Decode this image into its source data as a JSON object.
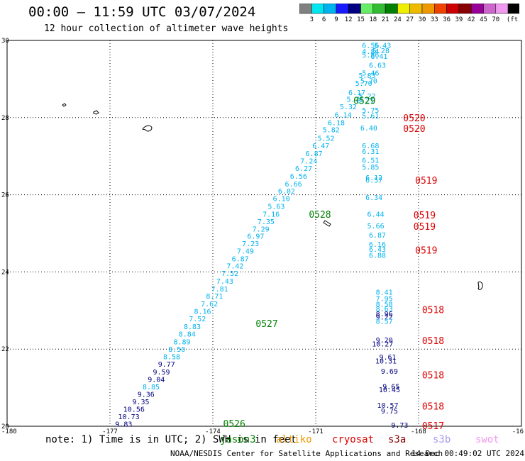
{
  "header": {
    "title": "00:00 – 11:59 UTC 03/07/2024",
    "subtitle": "12 hour collection of altimeter wave heights"
  },
  "colorbar": {
    "labels": [
      "3",
      "6",
      "9",
      "12",
      "15",
      "18",
      "21",
      "24",
      "27",
      "30",
      "33",
      "36",
      "39",
      "42",
      "45",
      "70"
    ],
    "unit": "(ft)",
    "colors": [
      "#808080",
      "#00e5ee",
      "#00b2ee",
      "#1a1aff",
      "#000080",
      "#66ee66",
      "#33bb33",
      "#008000",
      "#eeee00",
      "#eebb00",
      "#ee9900",
      "#ee4400",
      "#cc0000",
      "#880000",
      "#990099",
      "#cc66cc",
      "#ee99ee",
      "#000000"
    ]
  },
  "axes": {
    "x_ticks": [
      "-180",
      "-177",
      "-174",
      "-171",
      "-168",
      "-16"
    ],
    "y_ticks": [
      "30",
      "28",
      "26",
      "24",
      "22",
      "20"
    ]
  },
  "map": {
    "lon_range": [
      -180,
      -165
    ],
    "lat_range": [
      20,
      30
    ],
    "track_labels": [
      {
        "text": "0529",
        "color": "#008000",
        "lon": -169.9,
        "lat": 28.45
      },
      {
        "text": "0520",
        "color": "#dd0000",
        "lon": -168.45,
        "lat": 28.0
      },
      {
        "text": "0520",
        "color": "#dd0000",
        "lon": -168.45,
        "lat": 27.72
      },
      {
        "text": "0519",
        "color": "#dd0000",
        "lon": -168.1,
        "lat": 26.38
      },
      {
        "text": "0528",
        "color": "#008000",
        "lon": -171.2,
        "lat": 25.5
      },
      {
        "text": "0519",
        "color": "#dd0000",
        "lon": -168.15,
        "lat": 25.48
      },
      {
        "text": "0519",
        "color": "#dd0000",
        "lon": -168.15,
        "lat": 25.18
      },
      {
        "text": "0519",
        "color": "#dd0000",
        "lon": -168.1,
        "lat": 24.57
      },
      {
        "text": "0518",
        "color": "#dd0000",
        "lon": -167.9,
        "lat": 23.02
      },
      {
        "text": "0527",
        "color": "#008000",
        "lon": -172.75,
        "lat": 22.67
      },
      {
        "text": "0518",
        "color": "#dd0000",
        "lon": -167.9,
        "lat": 22.22
      },
      {
        "text": "0518",
        "color": "#dd0000",
        "lon": -167.9,
        "lat": 21.33
      },
      {
        "text": "0518",
        "color": "#dd0000",
        "lon": -167.9,
        "lat": 20.52
      },
      {
        "text": "0526",
        "color": "#008000",
        "lon": -173.7,
        "lat": 20.07
      },
      {
        "text": "0517",
        "color": "#dd0000",
        "lon": -167.9,
        "lat": 20.02
      }
    ],
    "track_a": [
      {
        "v": "6.56",
        "c": "#00b2ee",
        "lon": -169.4,
        "lat": 29.88
      },
      {
        "v": "5.43",
        "c": "#00b2ee",
        "lon": -169.05,
        "lat": 29.88
      },
      {
        "v": "4.84",
        "c": "#00b2ee",
        "lon": -169.4,
        "lat": 29.72
      },
      {
        "v": "5.28",
        "c": "#00b2ee",
        "lon": -169.1,
        "lat": 29.74
      },
      {
        "v": "5.86",
        "c": "#00b2ee",
        "lon": -169.4,
        "lat": 29.63
      },
      {
        "v": "6.41",
        "c": "#00b2ee",
        "lon": -169.15,
        "lat": 29.6
      },
      {
        "v": "6.63",
        "c": "#00b2ee",
        "lon": -169.2,
        "lat": 29.37
      },
      {
        "v": "5.46",
        "c": "#00b2ee",
        "lon": -169.4,
        "lat": 29.16
      },
      {
        "v": "5.83",
        "c": "#00b2ee",
        "lon": -169.5,
        "lat": 29.1
      },
      {
        "v": "5.70",
        "c": "#00b2ee",
        "lon": -169.45,
        "lat": 28.96
      },
      {
        "v": "5.70",
        "c": "#00b2ee",
        "lon": -169.6,
        "lat": 28.9
      },
      {
        "v": "6.17",
        "c": "#00b2ee",
        "lon": -169.8,
        "lat": 28.66
      },
      {
        "v": "5.22",
        "c": "#00b2ee",
        "lon": -169.5,
        "lat": 28.57
      },
      {
        "v": "5.71",
        "c": "#00b2ee",
        "lon": -169.85,
        "lat": 28.48
      },
      {
        "v": "5.21",
        "c": "#00b2ee",
        "lon": -169.55,
        "lat": 28.45
      },
      {
        "v": "5.32",
        "c": "#00b2ee",
        "lon": -170.05,
        "lat": 28.29
      },
      {
        "v": "5.75",
        "c": "#00b2ee",
        "lon": -169.4,
        "lat": 28.2
      },
      {
        "v": "6.14",
        "c": "#00b2ee",
        "lon": -170.2,
        "lat": 28.08
      },
      {
        "v": "5.61",
        "c": "#00b2ee",
        "lon": -169.4,
        "lat": 28.05
      },
      {
        "v": "6.18",
        "c": "#00b2ee",
        "lon": -170.4,
        "lat": 27.88
      },
      {
        "v": "6.40",
        "c": "#00b2ee",
        "lon": -169.45,
        "lat": 27.74
      },
      {
        "v": "5.82",
        "c": "#00b2ee",
        "lon": -170.55,
        "lat": 27.69
      },
      {
        "v": "5.52",
        "c": "#00b2ee",
        "lon": -170.7,
        "lat": 27.47
      },
      {
        "v": "6.47",
        "c": "#00b2ee",
        "lon": -170.85,
        "lat": 27.28
      },
      {
        "v": "6.68",
        "c": "#00b2ee",
        "lon": -169.4,
        "lat": 27.28
      },
      {
        "v": "6.31",
        "c": "#00b2ee",
        "lon": -169.4,
        "lat": 27.13
      },
      {
        "v": "6.87",
        "c": "#00b2ee",
        "lon": -171.05,
        "lat": 27.08
      },
      {
        "v": "7.24",
        "c": "#00b2ee",
        "lon": -171.2,
        "lat": 26.88
      },
      {
        "v": "6.51",
        "c": "#00b2ee",
        "lon": -169.4,
        "lat": 26.9
      },
      {
        "v": "6.27",
        "c": "#00b2ee",
        "lon": -171.35,
        "lat": 26.69
      },
      {
        "v": "5.85",
        "c": "#00b2ee",
        "lon": -169.4,
        "lat": 26.73
      },
      {
        "v": "6.56",
        "c": "#00b2ee",
        "lon": -171.5,
        "lat": 26.49
      },
      {
        "v": "6.12",
        "c": "#00b2ee",
        "lon": -169.3,
        "lat": 26.45
      },
      {
        "v": "6.66",
        "c": "#00b2ee",
        "lon": -171.65,
        "lat": 26.29
      },
      {
        "v": "6.57",
        "c": "#00b2ee",
        "lon": -169.3,
        "lat": 26.39
      },
      {
        "v": "6.02",
        "c": "#00b2ee",
        "lon": -171.85,
        "lat": 26.1
      },
      {
        "v": "6.34",
        "c": "#00b2ee",
        "lon": -169.3,
        "lat": 25.94
      },
      {
        "v": "6.10",
        "c": "#00b2ee",
        "lon": -172.0,
        "lat": 25.91
      },
      {
        "v": "5.63",
        "c": "#00b2ee",
        "lon": -172.15,
        "lat": 25.71
      },
      {
        "v": "7.16",
        "c": "#00b2ee",
        "lon": -172.3,
        "lat": 25.51
      },
      {
        "v": "6.44",
        "c": "#00b2ee",
        "lon": -169.25,
        "lat": 25.51
      },
      {
        "v": "7.35",
        "c": "#00b2ee",
        "lon": -172.45,
        "lat": 25.31
      },
      {
        "v": "5.66",
        "c": "#00b2ee",
        "lon": -169.25,
        "lat": 25.2
      },
      {
        "v": "7.29",
        "c": "#00b2ee",
        "lon": -172.6,
        "lat": 25.12
      },
      {
        "v": "6.87",
        "c": "#00b2ee",
        "lon": -169.2,
        "lat": 24.96
      },
      {
        "v": "6.97",
        "c": "#00b2ee",
        "lon": -172.75,
        "lat": 24.94
      },
      {
        "v": "7.23",
        "c": "#00b2ee",
        "lon": -172.9,
        "lat": 24.74
      },
      {
        "v": "6.16",
        "c": "#00b2ee",
        "lon": -169.2,
        "lat": 24.72
      },
      {
        "v": "6.43",
        "c": "#00b2ee",
        "lon": -169.2,
        "lat": 24.6
      },
      {
        "v": "7.49",
        "c": "#00b2ee",
        "lon": -173.05,
        "lat": 24.55
      },
      {
        "v": "6.88",
        "c": "#00b2ee",
        "lon": -169.2,
        "lat": 24.44
      },
      {
        "v": "6.87",
        "c": "#00b2ee",
        "lon": -173.2,
        "lat": 24.35
      },
      {
        "v": "7.42",
        "c": "#00b2ee",
        "lon": -173.35,
        "lat": 24.16
      },
      {
        "v": "7.52",
        "c": "#00b2ee",
        "lon": -173.5,
        "lat": 23.97
      },
      {
        "v": "7.43",
        "c": "#00b2ee",
        "lon": -173.65,
        "lat": 23.77
      },
      {
        "v": "7.81",
        "c": "#00b2ee",
        "lon": -173.8,
        "lat": 23.57
      },
      {
        "v": "8.41",
        "c": "#00b2ee",
        "lon": -169.0,
        "lat": 23.48
      },
      {
        "v": "8.71",
        "c": "#00b2ee",
        "lon": -173.95,
        "lat": 23.38
      },
      {
        "v": "7.95",
        "c": "#00b2ee",
        "lon": -169.0,
        "lat": 23.32
      },
      {
        "v": "8.58",
        "c": "#00b2ee",
        "lon": -169.0,
        "lat": 23.17
      },
      {
        "v": "7.62",
        "c": "#00b2ee",
        "lon": -174.1,
        "lat": 23.18
      },
      {
        "v": "8.63",
        "c": "#00b2ee",
        "lon": -169.0,
        "lat": 23.05
      },
      {
        "v": "8.16",
        "c": "#00b2ee",
        "lon": -174.3,
        "lat": 22.99
      },
      {
        "v": "8.96",
        "c": "#000080",
        "lon": -169.0,
        "lat": 22.92
      },
      {
        "v": "9.22",
        "c": "#000080",
        "lon": -169.0,
        "lat": 22.84
      },
      {
        "v": "7.52",
        "c": "#00b2ee",
        "lon": -174.45,
        "lat": 22.79
      },
      {
        "v": "8.57",
        "c": "#00b2ee",
        "lon": -169.0,
        "lat": 22.73
      },
      {
        "v": "8.83",
        "c": "#00b2ee",
        "lon": -174.6,
        "lat": 22.59
      },
      {
        "v": "8.84",
        "c": "#00b2ee",
        "lon": -174.75,
        "lat": 22.4
      },
      {
        "v": "9.20",
        "c": "#000080",
        "lon": -169.0,
        "lat": 22.24
      },
      {
        "v": "10.27",
        "c": "#000080",
        "lon": -169.05,
        "lat": 22.14
      },
      {
        "v": "8.89",
        "c": "#00b2ee",
        "lon": -174.9,
        "lat": 22.2
      },
      {
        "v": "8.50",
        "c": "#00b2ee",
        "lon": -175.05,
        "lat": 22.0
      },
      {
        "v": "8.58",
        "c": "#00b2ee",
        "lon": -175.2,
        "lat": 21.81
      },
      {
        "v": "9.61",
        "c": "#000080",
        "lon": -168.9,
        "lat": 21.8
      },
      {
        "v": "10.31",
        "c": "#000080",
        "lon": -168.95,
        "lat": 21.7
      },
      {
        "v": "9.77",
        "c": "#000080",
        "lon": -175.35,
        "lat": 21.62
      },
      {
        "v": "9.59",
        "c": "#000080",
        "lon": -175.5,
        "lat": 21.42
      },
      {
        "v": "9.69",
        "c": "#000080",
        "lon": -168.85,
        "lat": 21.43
      },
      {
        "v": "9.04",
        "c": "#000080",
        "lon": -175.65,
        "lat": 21.22
      },
      {
        "v": "8.85",
        "c": "#00b2ee",
        "lon": -175.8,
        "lat": 21.03
      },
      {
        "v": "9.65",
        "c": "#000080",
        "lon": -168.8,
        "lat": 21.04
      },
      {
        "v": "10.45",
        "c": "#000080",
        "lon": -168.85,
        "lat": 20.96
      },
      {
        "v": "9.36",
        "c": "#000080",
        "lon": -175.95,
        "lat": 20.84
      },
      {
        "v": "9.35",
        "c": "#000080",
        "lon": -176.1,
        "lat": 20.64
      },
      {
        "v": "10.57",
        "c": "#000080",
        "lon": -168.9,
        "lat": 20.55
      },
      {
        "v": "10.56",
        "c": "#000080",
        "lon": -176.3,
        "lat": 20.45
      },
      {
        "v": "9.75",
        "c": "#000080",
        "lon": -168.85,
        "lat": 20.4
      },
      {
        "v": "10.73",
        "c": "#000080",
        "lon": -176.45,
        "lat": 20.26
      },
      {
        "v": "9.83",
        "c": "#000080",
        "lon": -176.6,
        "lat": 20.06
      },
      {
        "v": "9.73",
        "c": "#000080",
        "lon": -168.55,
        "lat": 20.04
      }
    ]
  },
  "footer": {
    "note": "note: 1) Time is in UTC; 2) SWH is in feet",
    "legend": [
      {
        "text": "jason3",
        "color": "#008000"
      },
      {
        "text": "altiko",
        "color": "#ee9900"
      },
      {
        "text": "cryosat",
        "color": "#dd0000"
      },
      {
        "text": "s3a",
        "color": "#880000"
      },
      {
        "text": "s3b",
        "color": "#aa99ee"
      },
      {
        "text": "swot",
        "color": "#ee99ee"
      }
    ],
    "credit": "NOAA/NESDIS Center for Satellite Applications and Research",
    "timestamp": "14 Dec 00:49:02 UTC 2024"
  }
}
